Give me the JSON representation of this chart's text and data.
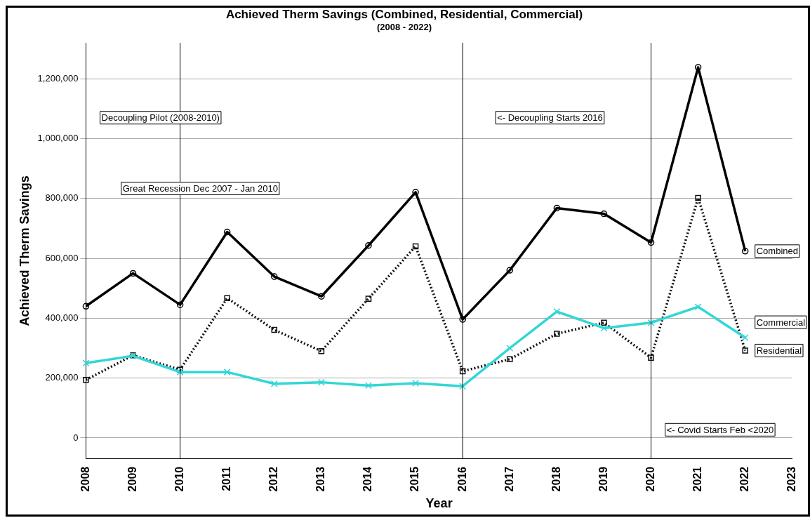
{
  "chart_data": {
    "type": "line",
    "title": "Achieved Therm Savings (Combined, Residential, Commercial)",
    "subtitle": "(2008 - 2022)",
    "xlabel": "Year",
    "ylabel": "Achieved Therm Savings",
    "categories": [
      "2008",
      "2009",
      "2010",
      "2011",
      "2012",
      "2013",
      "2014",
      "2015",
      "2016",
      "2017",
      "2018",
      "2019",
      "2020",
      "2021",
      "2022",
      "2023"
    ],
    "series": [
      {
        "name": "Combined",
        "color": "#000000",
        "marker": "circle",
        "line_style": "solid",
        "values": [
          440000,
          550000,
          445000,
          688000,
          539000,
          473000,
          643000,
          821000,
          396000,
          560000,
          768000,
          749000,
          653000,
          1238000,
          624000,
          null
        ]
      },
      {
        "name": "Residential",
        "color": "#111111",
        "marker": "square",
        "line_style": "dotted",
        "values": [
          194000,
          276000,
          228000,
          467000,
          361000,
          290000,
          465000,
          640000,
          223000,
          263000,
          348000,
          385000,
          268000,
          802000,
          292000,
          null
        ]
      },
      {
        "name": "Commercial",
        "color": "#33d6d6",
        "marker": "cross",
        "line_style": "solid",
        "values": [
          250000,
          274000,
          220000,
          220000,
          181000,
          186000,
          175000,
          183000,
          173000,
          300000,
          422000,
          367000,
          385000,
          438000,
          335000,
          null
        ]
      }
    ],
    "ylim": [
      -70000,
      1320000
    ],
    "yticks": [
      0,
      {
        "value": 200000,
        "label": "200,000"
      },
      {
        "value": 400000,
        "label": "400,000"
      },
      {
        "value": 600000,
        "label": "600,000"
      },
      {
        "value": 800000,
        "label": "800,000"
      },
      {
        "value": 1000000,
        "label": "1,000,000"
      },
      {
        "value": 1200000,
        "label": "1,200,000"
      }
    ],
    "grid": "y",
    "legend": false,
    "ref_lines": [
      {
        "axis": "x",
        "value": "2010",
        "color": "#000000"
      },
      {
        "axis": "x",
        "value": "2016",
        "color": "#000000"
      },
      {
        "axis": "x",
        "value": "2020",
        "color": "#000000"
      }
    ],
    "annotations": [
      "Decoupling Pilot (2008-2010)",
      "Great Recession Dec 2007 - Jan 2010",
      "<- Decoupling Starts 2016",
      "<- Covid Starts Feb <2020"
    ]
  }
}
